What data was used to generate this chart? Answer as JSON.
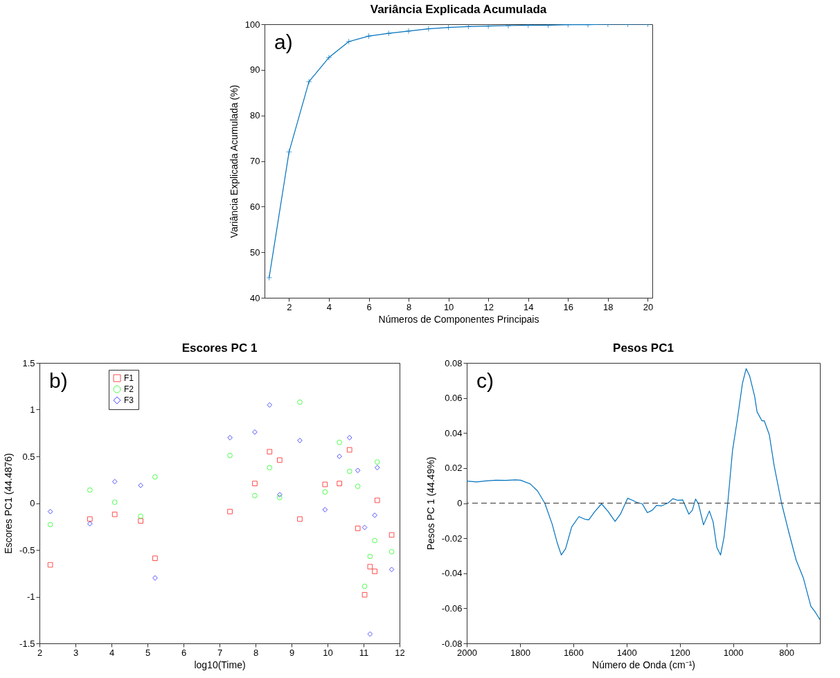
{
  "chart_data": [
    {
      "type": "line",
      "title": "Variância Explicada Acumulada",
      "xlabel": "Números de Componentes Principais",
      "ylabel": "Variância Explicada Acumulada (%)",
      "annotations": [
        "a)"
      ],
      "color": "#0072bd",
      "marker": "cross",
      "x": [
        1,
        2,
        3,
        4,
        5,
        6,
        7,
        8,
        9,
        10,
        11,
        12,
        13,
        14,
        15,
        16,
        17,
        18,
        19,
        20
      ],
      "values": [
        44.4,
        72.0,
        87.4,
        92.7,
        96.2,
        97.4,
        98.0,
        98.5,
        99.0,
        99.3,
        99.5,
        99.6,
        99.7,
        99.8,
        99.8,
        99.9,
        99.9,
        100,
        100,
        100
      ],
      "xlim": [
        0.77,
        20.23
      ],
      "xticks": [
        2,
        4,
        6,
        8,
        10,
        12,
        14,
        16,
        18,
        20
      ],
      "ylim": [
        40,
        100
      ],
      "yticks": [
        40,
        50,
        60,
        70,
        80,
        90,
        100
      ]
    },
    {
      "type": "scatter",
      "title": "Escores PC 1",
      "xlabel": "log10(Time)",
      "ylabel": "Escores PC1 (44.4876)",
      "annotations": [
        "b)"
      ],
      "legend": "top left",
      "x": [
        2.3,
        3.4,
        4.09,
        4.81,
        5.21,
        7.29,
        7.98,
        8.39,
        8.67,
        9.23,
        9.93,
        10.33,
        10.61,
        10.84,
        11.03,
        11.18,
        11.31,
        11.38,
        11.78
      ],
      "series": [
        {
          "name": "F1",
          "color": "#ff0000",
          "marker": "square",
          "values": [
            -0.66,
            -0.17,
            -0.12,
            -0.19,
            -0.59,
            -0.09,
            0.21,
            0.55,
            0.46,
            -0.17,
            0.2,
            0.21,
            0.57,
            -0.27,
            -0.98,
            -0.68,
            -0.73,
            0.03,
            -0.34
          ]
        },
        {
          "name": "F2",
          "color": "#00ff00",
          "marker": "circle",
          "values": [
            -0.23,
            0.14,
            0.01,
            -0.14,
            0.28,
            0.51,
            0.08,
            0.38,
            0.06,
            1.08,
            0.12,
            0.65,
            0.34,
            0.18,
            -0.89,
            -0.57,
            -0.4,
            0.44,
            -0.52
          ]
        },
        {
          "name": "F3",
          "color": "#0000ff",
          "marker": "diamond",
          "values": [
            -0.09,
            -0.22,
            0.23,
            0.19,
            -0.8,
            0.7,
            0.76,
            1.05,
            0.09,
            0.67,
            -0.07,
            0.5,
            0.7,
            0.35,
            -0.26,
            -1.4,
            -0.13,
            0.38,
            -0.71
          ]
        }
      ],
      "xlim": [
        2,
        12
      ],
      "xticks": [
        2,
        3,
        4,
        5,
        6,
        7,
        8,
        9,
        10,
        11,
        12
      ],
      "ylim": [
        -1.5,
        1.5
      ],
      "yticks": [
        -1.5,
        -1,
        -0.5,
        0,
        0.5,
        1,
        1.5
      ]
    },
    {
      "type": "line",
      "title": "Pesos PC1",
      "xlabel": "Número de Onda (cm⁻¹)",
      "ylabel": "Pesos PC 1 (44.49%)",
      "annotations": [
        "c)"
      ],
      "color": "#0072bd",
      "x": [
        2000,
        1963,
        1927,
        1890,
        1853,
        1817,
        1798,
        1762,
        1734,
        1707,
        1679,
        1661,
        1645,
        1629,
        1606,
        1579,
        1556,
        1542,
        1519,
        1494,
        1469,
        1443,
        1423,
        1396,
        1377,
        1361,
        1341,
        1322,
        1304,
        1287,
        1269,
        1244,
        1226,
        1208,
        1189,
        1166,
        1153,
        1141,
        1130,
        1111,
        1089,
        1075,
        1061,
        1047,
        1034,
        1020,
        1002,
        984,
        965,
        951,
        938,
        919,
        910,
        892,
        883,
        864,
        846,
        818,
        791,
        763,
        736,
        708,
        690,
        674
      ],
      "values": [
        0.0126,
        0.0121,
        0.0127,
        0.0131,
        0.013,
        0.0133,
        0.0131,
        0.011,
        0.0069,
        0,
        -0.0121,
        -0.0223,
        -0.0296,
        -0.026,
        -0.0136,
        -0.0077,
        -0.0092,
        -0.0095,
        -0.0048,
        -0.0004,
        -0.0048,
        -0.0104,
        -0.0063,
        0.0028,
        0.0016,
        0.0004,
        -0.0004,
        -0.0054,
        -0.0041,
        -0.0012,
        -0.0016,
        0.0001,
        0.0025,
        0.0016,
        0.0018,
        -0.0063,
        -0.0041,
        0.0023,
        -0.0004,
        -0.0124,
        -0.0045,
        -0.0107,
        -0.0253,
        -0.0296,
        -0.0194,
        0,
        0.0302,
        0.0477,
        0.0682,
        0.0767,
        0.0726,
        0.0609,
        0.0521,
        0.047,
        0.047,
        0.039,
        0.0215,
        0,
        -0.0165,
        -0.0326,
        -0.0428,
        -0.0588,
        -0.0625,
        -0.0664
      ],
      "ref_lines": [
        {
          "axis": "y",
          "value": 0,
          "color": "#333333",
          "line_style": "dashed"
        }
      ],
      "xlim": [
        2000,
        674
      ],
      "xticks": [
        2000,
        1800,
        1600,
        1400,
        1200,
        1000,
        800
      ],
      "ylim": [
        -0.08,
        0.08
      ],
      "yticks": [
        -0.08,
        -0.06,
        -0.04,
        -0.02,
        0,
        0.02,
        0.04,
        0.06,
        0.08
      ]
    }
  ]
}
